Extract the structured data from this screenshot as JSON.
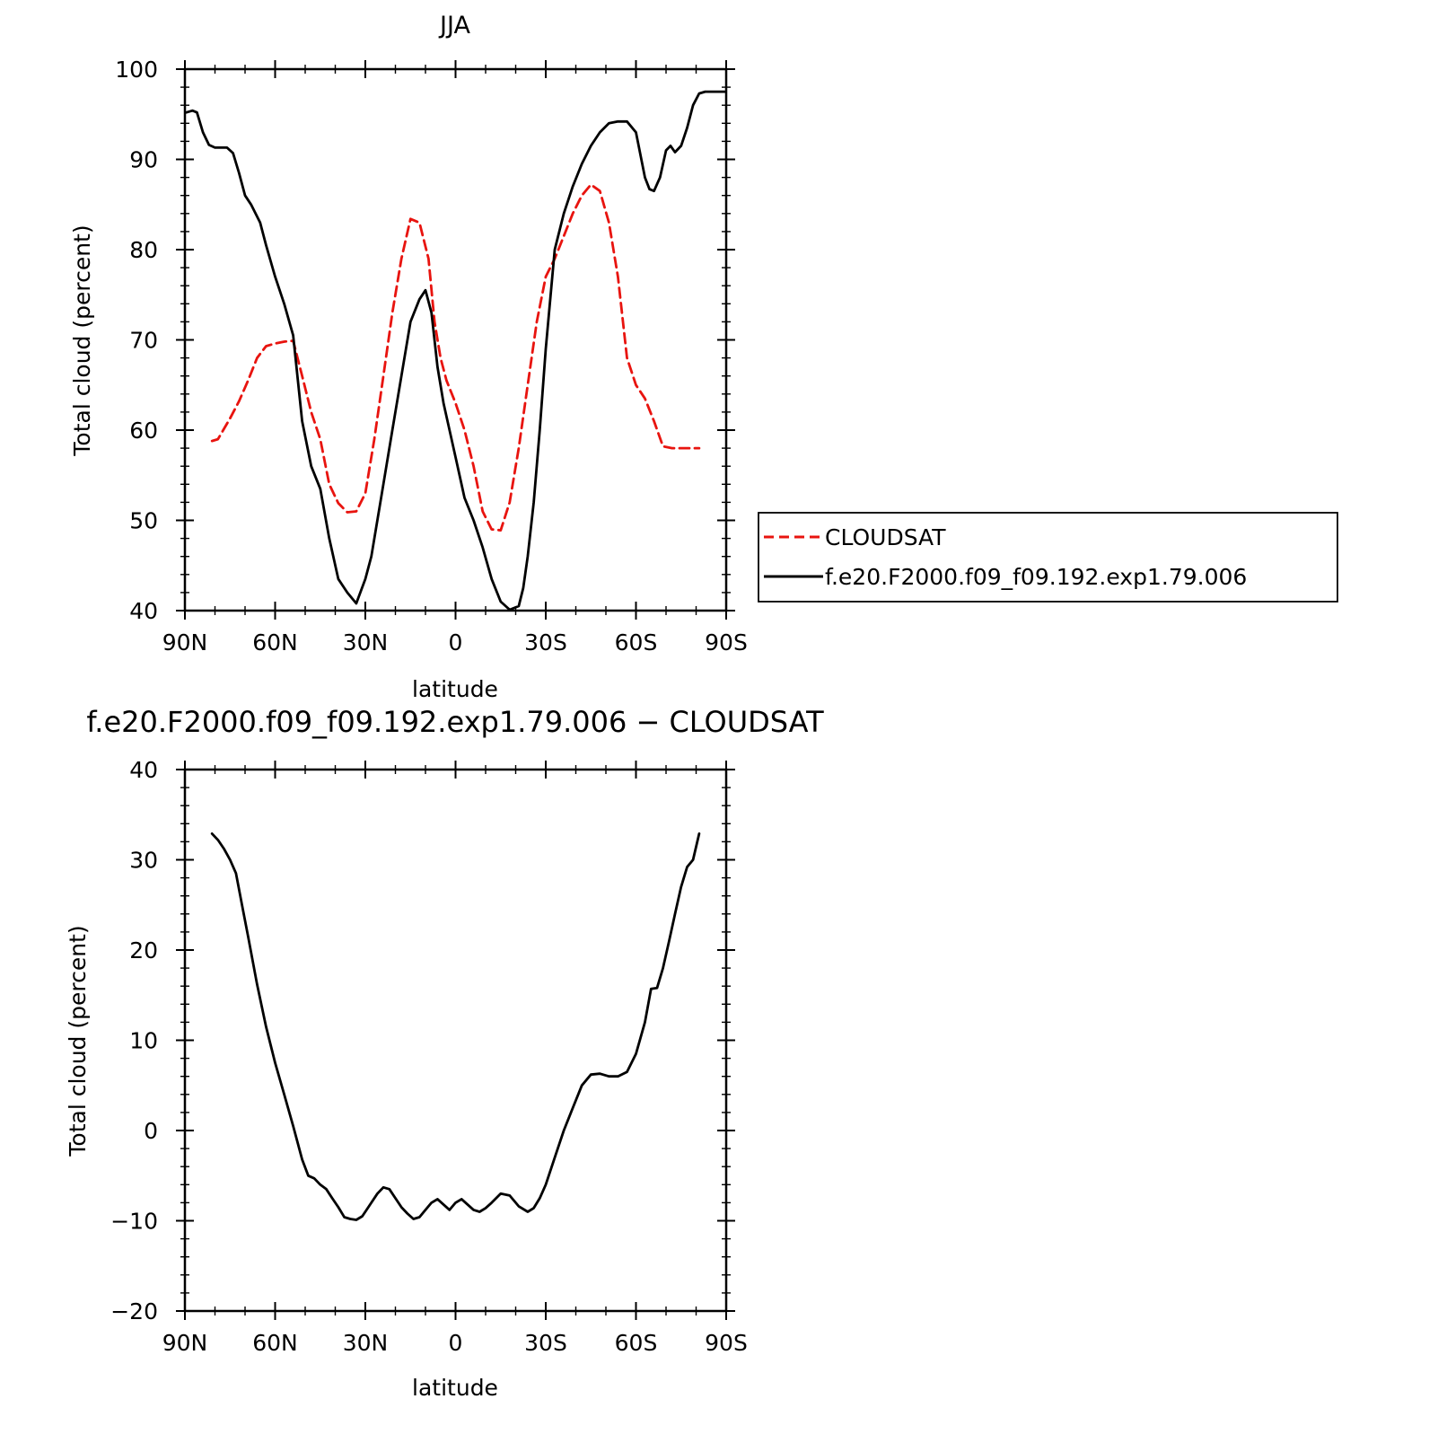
{
  "chart_data": [
    {
      "type": "line",
      "title": "JJA",
      "xlabel": "latitude",
      "ylabel": "Total cloud (percent)",
      "xlim": [
        90,
        -90
      ],
      "ylim": [
        40,
        100
      ],
      "x_ticks": [
        90,
        60,
        30,
        0,
        -30,
        -60,
        -90
      ],
      "x_tick_labels": [
        "90N",
        "60N",
        "30N",
        "0",
        "30S",
        "60S",
        "90S"
      ],
      "y_ticks": [
        40,
        50,
        60,
        70,
        80,
        90,
        100
      ],
      "y_tick_labels": [
        "40",
        "50",
        "60",
        "70",
        "80",
        "90",
        "100"
      ],
      "grid": false,
      "legend_position": "right",
      "series": [
        {
          "name": "CLOUDSAT",
          "color": "#e8140f",
          "dash": "dashed",
          "x": [
            81,
            79,
            75,
            72,
            69,
            66,
            63,
            60,
            57,
            54,
            51,
            48,
            45,
            42,
            39,
            36,
            33,
            30,
            27,
            24,
            21,
            18,
            15,
            12,
            9,
            7,
            5,
            3,
            0,
            -3,
            -6,
            -9,
            -12,
            -15,
            -18,
            -21,
            -24,
            -27,
            -30,
            -33,
            -36,
            -39,
            -42,
            -45,
            -48,
            -51,
            -54,
            -57,
            -60,
            -63,
            -66,
            -69,
            -72,
            -75,
            -78,
            -81
          ],
          "y": [
            58.8,
            59,
            61.3,
            63.2,
            65.5,
            68,
            69.3,
            69.6,
            69.8,
            69.9,
            66,
            62,
            59,
            54,
            51.9,
            50.9,
            51,
            53,
            59,
            66,
            73,
            79,
            83.4,
            83,
            79,
            72,
            68,
            65.5,
            63,
            60,
            56,
            51,
            49,
            48.9,
            52,
            58,
            65,
            72,
            77,
            79,
            81.5,
            84,
            86,
            87.2,
            86.5,
            83,
            77,
            68,
            65,
            63.5,
            61,
            58.2,
            58,
            58,
            58,
            58
          ]
        },
        {
          "name": "f.e20.F2000.f09_f09.192.exp1.79.006",
          "color": "#000000",
          "dash": "solid",
          "x": [
            89.5,
            87.5,
            86,
            84,
            82,
            80,
            78,
            76,
            74,
            72,
            70,
            68,
            65,
            63,
            60,
            57,
            54,
            51,
            48,
            45,
            42,
            39,
            36,
            33,
            30,
            28,
            26,
            24,
            21,
            18,
            15,
            12,
            10,
            8,
            6,
            4,
            2,
            0,
            -3,
            -6,
            -9,
            -12,
            -15,
            -18,
            -21,
            -22.5,
            -24,
            -26,
            -28,
            -30,
            -33,
            -36,
            -39,
            -42,
            -45,
            -48,
            -51,
            -54,
            -57,
            -60,
            -63,
            -64.5,
            -66,
            -68,
            -70,
            -71.5,
            -73,
            -75,
            -77,
            -79,
            -81,
            -83,
            -85,
            -87,
            -89.5
          ],
          "y": [
            95.2,
            95.4,
            95.2,
            93,
            91.6,
            91.3,
            91.3,
            91.3,
            90.7,
            88.5,
            86,
            85,
            83,
            80.5,
            77,
            74,
            70.5,
            61,
            56,
            53.5,
            48,
            43.5,
            42,
            40.8,
            43.5,
            46,
            50,
            54,
            60,
            66,
            72,
            74.5,
            75.5,
            73,
            67,
            63,
            60,
            57,
            52.5,
            50,
            47,
            43.5,
            41,
            40.1,
            40.5,
            42.5,
            46,
            52,
            60,
            69,
            80,
            84,
            87,
            89.5,
            91.5,
            93,
            94,
            94.2,
            94.2,
            93,
            88,
            86.7,
            86.5,
            88,
            91,
            91.5,
            90.8,
            91.5,
            93.5,
            96,
            97.3,
            97.5,
            97.5,
            97.5,
            97.5
          ]
        }
      ]
    },
    {
      "type": "line",
      "title": "f.e20.F2000.f09_f09.192.exp1.79.006 − CLOUDSAT",
      "xlabel": "latitude",
      "ylabel": "Total cloud (percent)",
      "xlim": [
        90,
        -90
      ],
      "ylim": [
        -20,
        40
      ],
      "x_ticks": [
        90,
        60,
        30,
        0,
        -30,
        -60,
        -90
      ],
      "x_tick_labels": [
        "90N",
        "60N",
        "30N",
        "0",
        "30S",
        "60S",
        "90S"
      ],
      "y_ticks": [
        -20,
        -10,
        0,
        10,
        20,
        30,
        40
      ],
      "y_tick_labels": [
        "−20",
        "−10",
        "0",
        "10",
        "20",
        "30",
        "40"
      ],
      "grid": false,
      "series": [
        {
          "color": "#000000",
          "dash": "solid",
          "x": [
            81,
            79,
            77,
            75,
            73,
            71,
            69,
            66,
            63,
            60,
            57,
            54,
            51,
            49,
            47,
            45,
            43,
            41,
            39,
            37,
            35,
            33,
            31,
            28,
            26,
            24,
            22,
            20,
            18,
            16,
            14,
            12,
            10,
            8,
            6,
            4,
            2,
            0,
            -2,
            -4,
            -6,
            -8,
            -10,
            -12,
            -15,
            -18,
            -21,
            -24,
            -26,
            -28,
            -30,
            -33,
            -36,
            -39,
            -42,
            -45,
            -48,
            -51,
            -54,
            -57,
            -60,
            -63,
            -65,
            -67,
            -69,
            -71,
            -73,
            -75,
            -77,
            -79,
            -81
          ],
          "y": [
            32.9,
            32.2,
            31.2,
            30,
            28.5,
            25,
            21.5,
            16.2,
            11.5,
            7.5,
            4,
            0.5,
            -3.2,
            -5,
            -5.3,
            -6,
            -6.5,
            -7.5,
            -8.5,
            -9.6,
            -9.8,
            -9.9,
            -9.5,
            -8,
            -7,
            -6.3,
            -6.5,
            -7.5,
            -8.5,
            -9.2,
            -9.8,
            -9.6,
            -8.8,
            -8,
            -7.6,
            -8.2,
            -8.8,
            -8,
            -7.6,
            -8.2,
            -8.8,
            -9,
            -8.6,
            -8,
            -7,
            -7.2,
            -8.4,
            -9,
            -8.6,
            -7.5,
            -6,
            -3,
            0,
            2.5,
            5,
            6.2,
            6.3,
            6,
            6,
            6.5,
            8.5,
            12,
            15.7,
            15.8,
            18,
            21,
            24,
            27,
            29.2,
            30,
            32.9
          ]
        }
      ]
    }
  ]
}
